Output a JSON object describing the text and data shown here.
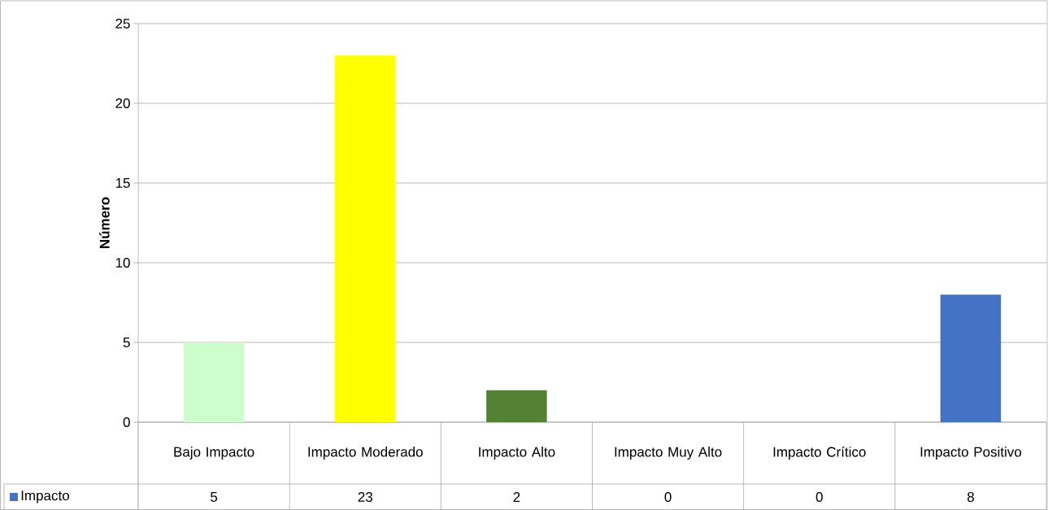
{
  "chart_data": {
    "type": "bar",
    "ylabel": "Número",
    "categories": [
      "Bajo Impacto",
      "Impacto Moderado",
      "Impacto Alto",
      "Impacto Muy Alto",
      "Impacto Crítico",
      "Impacto Positivo"
    ],
    "series": [
      {
        "name": "Impacto",
        "color": "#4472c4",
        "colors": [
          "#ccffcc",
          "#ffff00",
          "#548235",
          "#4472c4",
          "#4472c4",
          "#4472c4"
        ],
        "values": [
          5,
          23,
          2,
          0,
          0,
          8
        ]
      }
    ],
    "ylim": [
      0,
      25
    ],
    "yticks": [
      0,
      5,
      10,
      15,
      20,
      25
    ],
    "grid": "y",
    "legend": "bottom",
    "data_labels": true
  }
}
